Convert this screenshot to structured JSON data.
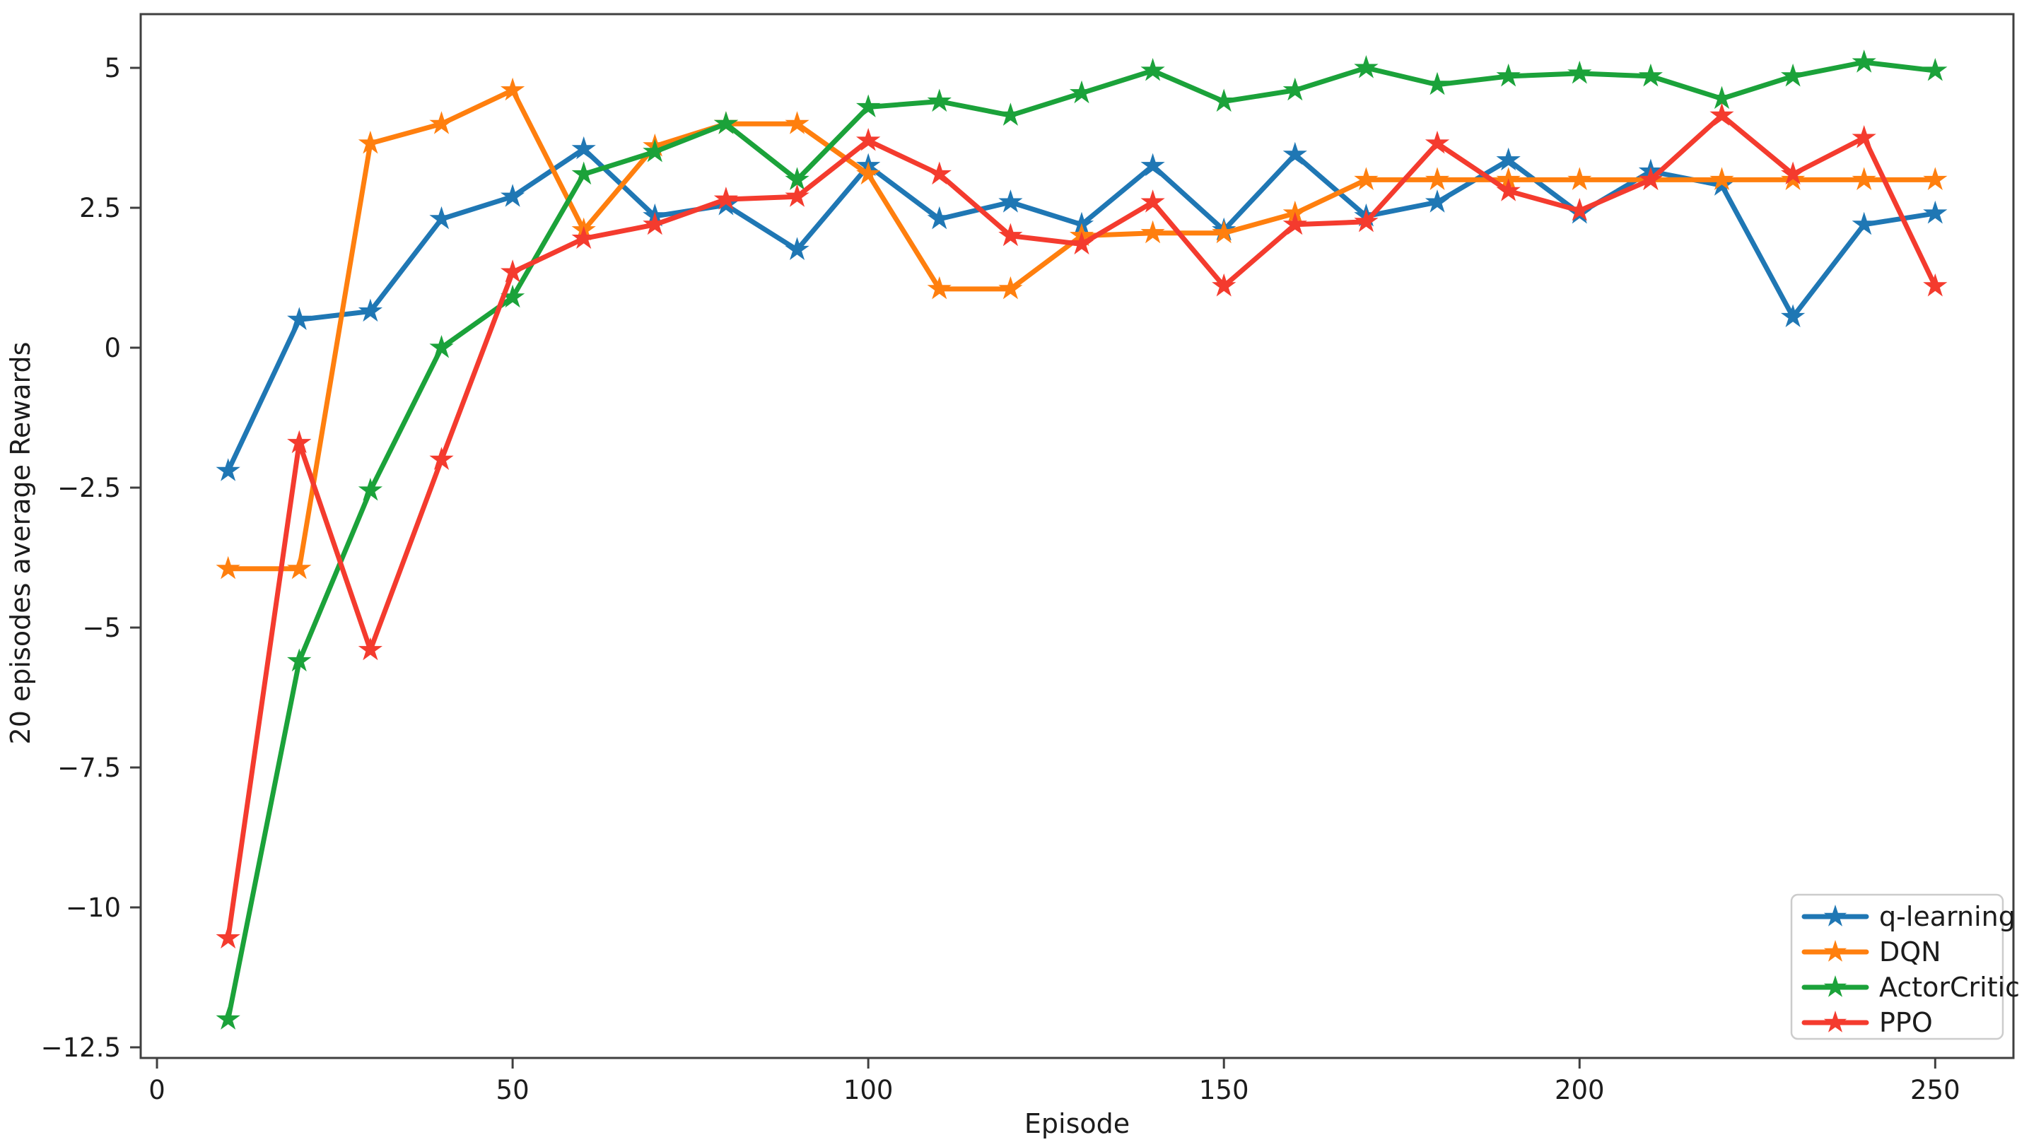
{
  "figure": {
    "background": "#ffffff",
    "text_color": "#1c1c1c",
    "spine_color": "#3f3f3f",
    "legend_border_color": "#cccccc"
  },
  "chart_data": {
    "type": "line",
    "title": "",
    "xlabel": "Episode",
    "ylabel": "20 episodes average Rewards",
    "marker": "star",
    "grid": false,
    "legend_position": "lower right",
    "xlim": [
      -2.29,
      261.0
    ],
    "ylim": [
      -12.69,
      5.96
    ],
    "x_ticks": [
      0,
      50,
      100,
      150,
      200,
      250
    ],
    "y_ticks": [
      5.0,
      2.5,
      0.0,
      -2.5,
      -5.0,
      -7.5,
      -10.0,
      -12.5
    ],
    "x": [
      10,
      20,
      30,
      40,
      50,
      60,
      70,
      80,
      90,
      100,
      110,
      120,
      130,
      140,
      150,
      160,
      170,
      180,
      190,
      200,
      210,
      220,
      230,
      240,
      250
    ],
    "series": [
      {
        "name": "q-learning",
        "color": "#1f77b4",
        "values": [
          -2.2,
          0.5,
          0.65,
          2.3,
          2.7,
          3.55,
          2.35,
          2.55,
          1.75,
          3.25,
          2.3,
          2.6,
          2.2,
          3.25,
          2.1,
          3.45,
          2.35,
          2.6,
          3.35,
          2.4,
          3.15,
          2.9,
          0.55,
          2.2,
          2.4
        ]
      },
      {
        "name": "DQN",
        "color": "#ff7f0e",
        "values": [
          -3.95,
          -3.95,
          3.65,
          4.0,
          4.6,
          2.1,
          3.6,
          4.0,
          4.0,
          3.1,
          1.05,
          1.05,
          2.0,
          2.05,
          2.05,
          2.4,
          3.0,
          3.0,
          3.0,
          3.0,
          3.0,
          3.0,
          3.0,
          3.0,
          3.0
        ]
      },
      {
        "name": "ActorCritic",
        "color": "#1ba23a",
        "values": [
          -12.0,
          -5.6,
          -2.55,
          0.0,
          0.9,
          3.1,
          3.5,
          4.0,
          3.0,
          4.3,
          4.4,
          4.15,
          4.55,
          4.95,
          4.4,
          4.6,
          5.0,
          4.7,
          4.85,
          4.9,
          4.85,
          4.45,
          4.85,
          5.1,
          4.95
        ]
      },
      {
        "name": "PPO",
        "color": "#f43b2e",
        "values": [
          -10.55,
          -1.7,
          -5.4,
          -2.0,
          1.35,
          1.95,
          2.2,
          2.65,
          2.7,
          3.7,
          3.1,
          2.0,
          1.85,
          2.6,
          1.1,
          2.2,
          2.25,
          3.65,
          2.8,
          2.45,
          3.0,
          4.15,
          3.1,
          3.75,
          1.1
        ]
      }
    ]
  }
}
